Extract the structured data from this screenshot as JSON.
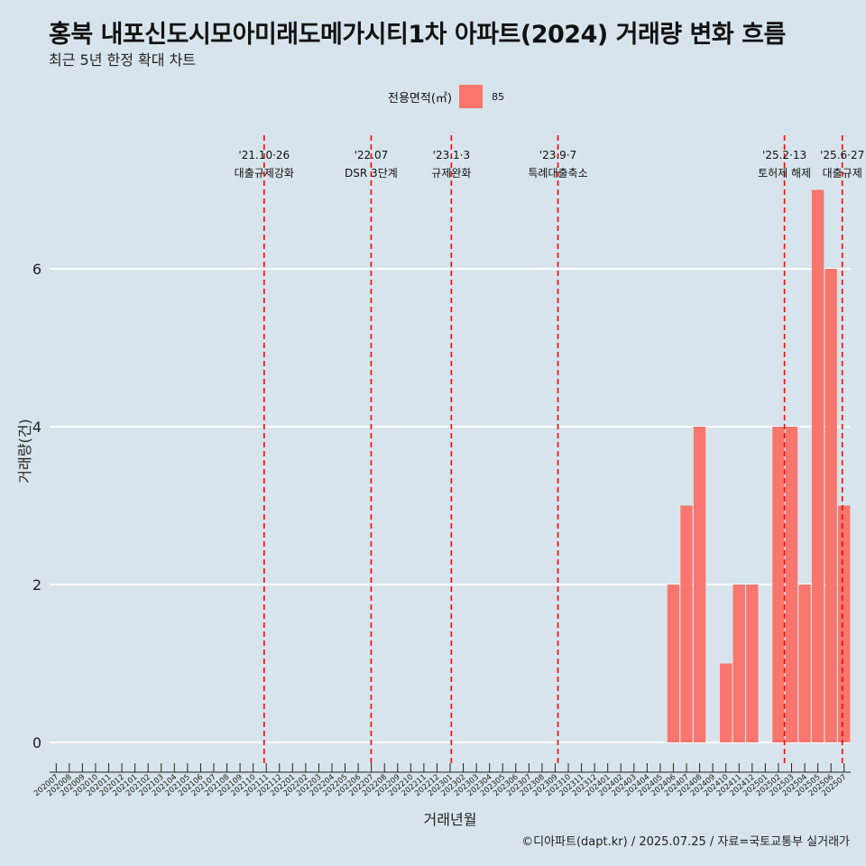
{
  "title": "홍북 내포신도시모아미래도메가시티1차 아파트(2024) 거래량 변화 흐름",
  "subtitle": "최근 5년 한정 확대 차트",
  "caption": "©디아파트(dapt.kr) / 2025.07.25 / 자료=국토교통부 실거래가",
  "colors": {
    "bar": "#f8766d",
    "vline": "#ff0000",
    "grid": "#ffffff",
    "background": "#d7e4ec"
  },
  "chart_data": {
    "type": "bar",
    "xlabel": "거래년월",
    "ylabel": "거래량(건)",
    "ylim": [
      0,
      7.5
    ],
    "yticks": [
      0,
      2,
      4,
      6
    ],
    "legend": {
      "title": "전용면적(㎡)",
      "entries": [
        "85"
      ],
      "position": "top"
    },
    "categories": [
      "202007",
      "202008",
      "202009",
      "202010",
      "202011",
      "202012",
      "202101",
      "202102",
      "202103",
      "202104",
      "202105",
      "202106",
      "202107",
      "202108",
      "202109",
      "202110",
      "202111",
      "202112",
      "202201",
      "202202",
      "202203",
      "202204",
      "202205",
      "202206",
      "202207",
      "202208",
      "202209",
      "202210",
      "202211",
      "202212",
      "202301",
      "202302",
      "202303",
      "202304",
      "202305",
      "202306",
      "202307",
      "202308",
      "202309",
      "202310",
      "202311",
      "202312",
      "202401",
      "202402",
      "202403",
      "202404",
      "202405",
      "202406",
      "202407",
      "202408",
      "202409",
      "202410",
      "202411",
      "202412",
      "202501",
      "202502",
      "202503",
      "202504",
      "202505",
      "202506",
      "202507"
    ],
    "series": [
      {
        "name": "85",
        "values": [
          0,
          0,
          0,
          0,
          0,
          0,
          0,
          0,
          0,
          0,
          0,
          0,
          0,
          0,
          0,
          0,
          0,
          0,
          0,
          0,
          0,
          0,
          0,
          0,
          0,
          0,
          0,
          0,
          0,
          0,
          0,
          0,
          0,
          0,
          0,
          0,
          0,
          0,
          0,
          0,
          0,
          0,
          0,
          0,
          0,
          0,
          0,
          2,
          3,
          4,
          0,
          1,
          2,
          2,
          0,
          4,
          4,
          2,
          7,
          6,
          3
        ]
      }
    ],
    "annotations": [
      {
        "date": "2021-10-26",
        "line1": "'21.10·26",
        "line2": "대출규제강화"
      },
      {
        "date": "2022-07-01",
        "line1": "'22.07",
        "line2": "DSR 3단계"
      },
      {
        "date": "2023-01-03",
        "line1": "'23.1·3",
        "line2": "규제완화"
      },
      {
        "date": "2023-09-07",
        "line1": "'23.9·7",
        "line2": "특례대출축소"
      },
      {
        "date": "2025-02-13",
        "line1": "'25.2·13",
        "line2": "토허제 해제"
      },
      {
        "date": "2025-06-27",
        "line1": "'25.6·27",
        "line2": "대출규제"
      }
    ]
  }
}
